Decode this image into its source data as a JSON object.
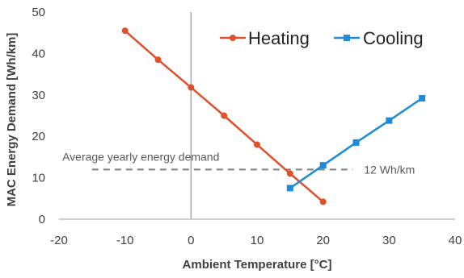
{
  "chart_data": {
    "type": "line",
    "title": "",
    "xlabel": "Ambient Temperature [°C]",
    "ylabel": "MAC Energy Demand [Wh/km]",
    "xlim": [
      -20,
      40
    ],
    "ylim": [
      0,
      50
    ],
    "xticks": [
      -20,
      -10,
      0,
      10,
      20,
      30,
      40
    ],
    "yticks": [
      0,
      10,
      20,
      30,
      40,
      50
    ],
    "grid": "none",
    "legend_position": "top-right",
    "series": [
      {
        "name": "Heating",
        "color": "#e0502a",
        "marker": "circle",
        "x": [
          -10,
          -5,
          0,
          5,
          10,
          15,
          20
        ],
        "y": [
          45.5,
          38.5,
          31.8,
          25,
          18,
          11,
          4.2
        ]
      },
      {
        "name": "Cooling",
        "color": "#1f8bd6",
        "marker": "square",
        "x": [
          15,
          20,
          25,
          30,
          35
        ],
        "y": [
          7.5,
          13,
          18.5,
          23.8,
          29.2
        ]
      }
    ],
    "reference_line": {
      "value": 12,
      "label": "Average yearly energy demand",
      "value_label": "12 Wh/km",
      "style": "dashed",
      "color": "#7f7f7f"
    }
  }
}
